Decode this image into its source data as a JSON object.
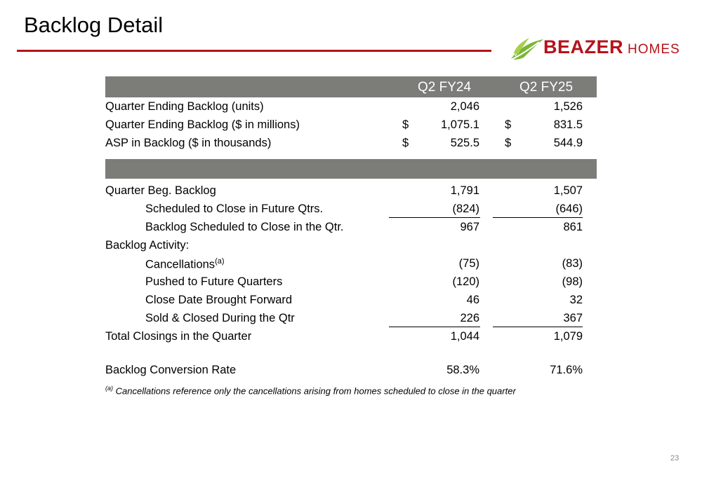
{
  "slide": {
    "title": "Backlog Detail",
    "page_number": "23"
  },
  "logo": {
    "brand": "BEAZER",
    "suffix": "HOMES",
    "brand_color": "#b5121b",
    "leaf_color": "#7ab535"
  },
  "colors": {
    "header_bg": "#7c7d78",
    "rule": "#b5121b"
  },
  "table": {
    "columns": [
      "Q2 FY24",
      "Q2 FY25"
    ],
    "top_rows": [
      {
        "label": "Quarter Ending Backlog (units)",
        "c1": "2,046",
        "c2": "1,526",
        "d1": "",
        "d2": ""
      },
      {
        "label": "Quarter Ending Backlog ($ in millions)",
        "c1": "1,075.1",
        "c2": "831.5",
        "d1": "$",
        "d2": "$"
      },
      {
        "label": "ASP in Backlog ($ in thousands)",
        "c1": "525.5",
        "c2": "544.9",
        "d1": "$",
        "d2": "$"
      }
    ],
    "rows": [
      {
        "label": "Quarter Beg. Backlog",
        "c1": "1,791",
        "c2": "1,507"
      },
      {
        "label": "Scheduled to Close in Future Qtrs.",
        "c1": "(824)",
        "c2": "(646)"
      },
      {
        "label": "Backlog Scheduled to Close in the Qtr.",
        "c1": "967",
        "c2": "861"
      },
      {
        "label": "Backlog Activity:"
      },
      {
        "label": "Cancellations",
        "label_sup": "(a)",
        "c1": "(75)",
        "c2": "(83)"
      },
      {
        "label": "Pushed to Future Quarters",
        "c1": "(120)",
        "c2": "(98)"
      },
      {
        "label": "Close Date Brought Forward",
        "c1": "46",
        "c2": "32"
      },
      {
        "label": "Sold & Closed During the Qtr",
        "c1": "226",
        "c2": "367"
      },
      {
        "label": "Total Closings in the Quarter",
        "c1": "1,044",
        "c2": "1,079"
      },
      {
        "label": "Backlog Conversion Rate",
        "c1": "58.3%",
        "c2": "71.6%"
      }
    ]
  },
  "footnote": {
    "marker": "(a)",
    "text": "Cancellations reference only the cancellations arising from homes scheduled to close in the quarter"
  }
}
